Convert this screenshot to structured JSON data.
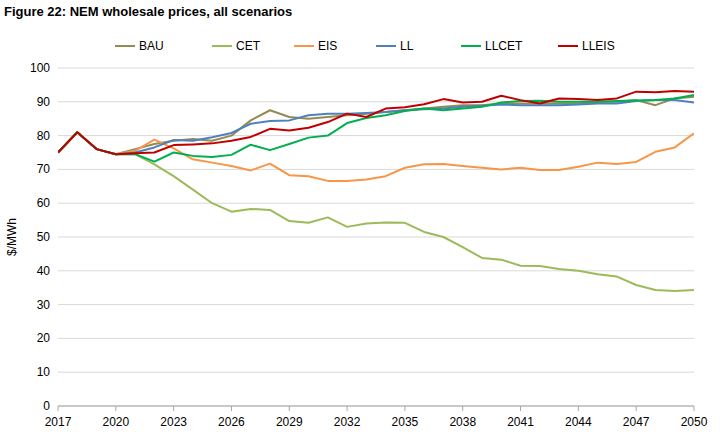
{
  "chart_data": {
    "type": "line",
    "title": "Figure 22:  NEM wholesale prices, all scenarios",
    "y_label": "$/MWh",
    "x": [
      2017,
      2018,
      2019,
      2020,
      2021,
      2022,
      2023,
      2024,
      2025,
      2026,
      2027,
      2028,
      2029,
      2030,
      2031,
      2032,
      2033,
      2034,
      2035,
      2036,
      2037,
      2038,
      2039,
      2040,
      2041,
      2042,
      2043,
      2044,
      2045,
      2046,
      2047,
      2048,
      2049,
      2050
    ],
    "xlim": [
      2017,
      2050
    ],
    "xticks": [
      2017,
      2020,
      2023,
      2026,
      2029,
      2032,
      2035,
      2038,
      2041,
      2044,
      2047,
      2050
    ],
    "ylim": [
      0,
      100
    ],
    "yticks": [
      0,
      10,
      20,
      30,
      40,
      50,
      60,
      70,
      80,
      90,
      100
    ],
    "grid": true,
    "legend": "top",
    "series": [
      {
        "name": "BAU",
        "color": "#948a54",
        "values": [
          75,
          81,
          76,
          74.5,
          76,
          77.5,
          78.5,
          79,
          78.5,
          80,
          84.5,
          87.5,
          85.5,
          85,
          85.5,
          86,
          86.5,
          87,
          87.5,
          88,
          88.5,
          89,
          89,
          89.5,
          89.5,
          89.5,
          89.5,
          89.5,
          90,
          90,
          90.5,
          89,
          91,
          91.5
        ]
      },
      {
        "name": "CET",
        "color": "#9bbb59",
        "values": [
          75,
          81,
          76,
          74.5,
          74.5,
          71.5,
          68,
          64,
          60,
          57.5,
          58.3,
          58,
          54.7,
          54.2,
          55.8,
          53,
          54,
          54.3,
          54.2,
          51.5,
          50,
          47,
          43.8,
          43.3,
          41.5,
          41.4,
          40.5,
          40,
          39,
          38.3,
          35.8,
          34.3,
          34,
          34.3
        ]
      },
      {
        "name": "EIS",
        "color": "#f79646",
        "values": [
          75,
          81,
          76,
          74.5,
          75.5,
          78.8,
          76.2,
          73,
          72,
          71,
          69.7,
          71.7,
          68.3,
          68,
          66.6,
          66.6,
          67,
          68,
          70.5,
          71.5,
          71.6,
          71,
          70.5,
          70,
          70.5,
          69.8,
          69.8,
          70.8,
          72,
          71.6,
          72.2,
          75.2,
          76.5,
          80.7
        ]
      },
      {
        "name": "LL",
        "color": "#4f81bd",
        "values": [
          75,
          81,
          76,
          74.5,
          75,
          76.5,
          78.7,
          78.5,
          79.5,
          80.8,
          83.5,
          84.3,
          84.5,
          86,
          86.5,
          86.5,
          86.7,
          87,
          87.5,
          87.8,
          88,
          88.5,
          88.8,
          89.2,
          89,
          89,
          89,
          89.2,
          89.5,
          89.5,
          90.2,
          90.5,
          90.5,
          89.8
        ]
      },
      {
        "name": "LLCET",
        "color": "#00b050",
        "values": [
          75,
          81,
          76,
          74.5,
          74.5,
          72.3,
          75,
          74,
          73.7,
          74.3,
          77.3,
          75.7,
          77.5,
          79.4,
          80,
          83.7,
          85.2,
          86,
          87.3,
          88,
          87.5,
          88,
          88.5,
          89.8,
          90.2,
          90.3,
          90,
          90,
          90,
          90.2,
          90.4,
          90.5,
          91,
          92
        ]
      },
      {
        "name": "LLEIS",
        "color": "#c00000",
        "values": [
          75,
          81,
          76,
          74.5,
          74.8,
          75,
          77.2,
          77.4,
          77.7,
          78.5,
          79.6,
          82,
          81.5,
          82.3,
          84,
          86.5,
          85.5,
          88,
          88.4,
          89.3,
          90.8,
          89.8,
          90,
          91.8,
          90.5,
          89.5,
          91,
          90.8,
          90.5,
          91,
          93,
          92.8,
          93.2,
          93
        ]
      }
    ]
  }
}
